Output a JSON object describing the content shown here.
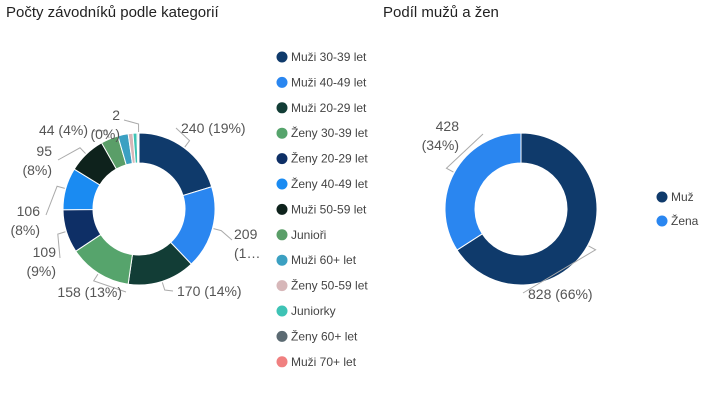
{
  "chart_data": [
    {
      "type": "donut",
      "title": "Počty závodníků podle kategorií",
      "legend_position": "right",
      "slices": [
        {
          "name": "Muži 30-39 let",
          "value": 240,
          "label": [
            "240 (19%)"
          ],
          "color": "#0f3a6b"
        },
        {
          "name": "Muži 40-49 let",
          "value": 209,
          "label": [
            "209",
            "(1…"
          ],
          "color": "#2a86f0"
        },
        {
          "name": "Muži 20-29 let",
          "value": 170,
          "label": [
            "170 (14%)"
          ],
          "color": "#123d36"
        },
        {
          "name": "Ženy 30-39 let",
          "value": 158,
          "label": [
            "158 (13%)"
          ],
          "color": "#56a46c"
        },
        {
          "name": "Ženy 20-29 let",
          "value": 109,
          "label": [
            "109",
            "(9%)"
          ],
          "color": "#0e2f66"
        },
        {
          "name": "Ženy 40-49 let",
          "value": 106,
          "label": [
            "106",
            "(8%)"
          ],
          "color": "#1a8bf2"
        },
        {
          "name": "Muži 50-59 let",
          "value": 95,
          "label": [
            "95",
            "(8%)"
          ],
          "color": "#0e221c"
        },
        {
          "name": "Junioři",
          "value": 44,
          "label": [
            "44 (4%)"
          ],
          "color": "#5a9e68"
        },
        {
          "name": "Muži 60+ let",
          "value": 26,
          "label": [],
          "color": "#3ba0c2"
        },
        {
          "name": "Ženy 50-59 let",
          "value": 12,
          "label": [],
          "color": "#d7b7b9"
        },
        {
          "name": "Juniorky",
          "value": 10,
          "label": [],
          "color": "#3ec3b5"
        },
        {
          "name": "Ženy 60+ let",
          "value": 3,
          "label": [],
          "color": "#5b6a72"
        },
        {
          "name": "Muži 70+ let",
          "value": 2,
          "label": [
            "2",
            "(0%)"
          ],
          "color": "#f08080"
        }
      ]
    },
    {
      "type": "donut",
      "title": "Podíl mužů a žen",
      "legend_position": "right",
      "slices": [
        {
          "name": "Muž",
          "value": 828,
          "label": [
            "828 (66%)"
          ],
          "color": "#0f3a6b"
        },
        {
          "name": "Žena",
          "value": 428,
          "label": [
            "428",
            "(34%)"
          ],
          "color": "#2a86f0"
        }
      ]
    }
  ]
}
